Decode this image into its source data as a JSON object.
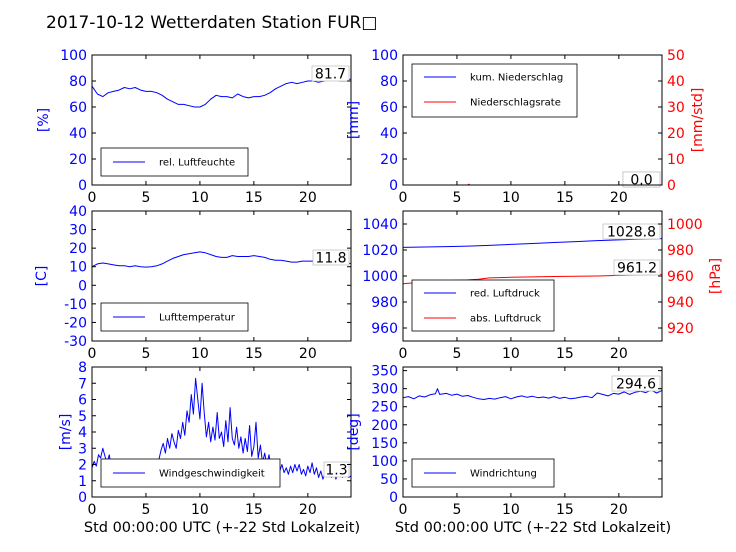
{
  "title": "2017-10-12 Wetterdaten Station FUR□",
  "xlabel": "Std 00:00:00 UTC (+-22 Std Lokalzeit)",
  "colors": {
    "blue": "#0000ff",
    "red": "#ff0000",
    "text": "#000000"
  },
  "chart_data": [
    {
      "type": "line",
      "id": "humidity",
      "ylabel": "[%]",
      "ylim": [
        0,
        100
      ],
      "yticks": [
        0,
        20,
        40,
        60,
        80,
        100
      ],
      "xlim": [
        0,
        24
      ],
      "xticks": [
        0,
        5,
        10,
        15,
        20
      ],
      "series": [
        {
          "name": "rel. Luftfeuchte",
          "color": "blue",
          "x": [
            0,
            0.5,
            1,
            1.5,
            2,
            2.5,
            3,
            3.5,
            4,
            4.5,
            5,
            5.5,
            6,
            6.5,
            7,
            7.5,
            8,
            8.5,
            9,
            9.5,
            10,
            10.5,
            11,
            11.5,
            12,
            12.5,
            13,
            13.5,
            14,
            14.5,
            15,
            15.5,
            16,
            16.5,
            17,
            17.5,
            18,
            18.5,
            19,
            19.5,
            20,
            20.5,
            21,
            21.5,
            22,
            22.5,
            23,
            23.5,
            24
          ],
          "y": [
            76,
            70,
            68,
            71,
            72,
            73,
            75,
            74,
            75,
            73,
            72,
            72,
            71,
            69,
            66,
            64,
            62,
            62,
            61,
            60,
            60,
            62,
            66,
            69,
            68,
            68,
            67,
            70,
            68,
            67,
            68,
            68,
            69,
            71,
            74,
            76,
            78,
            79,
            78,
            79,
            80,
            80,
            79,
            80,
            81,
            81,
            80,
            80,
            81.7
          ]
        }
      ],
      "annotations": [
        {
          "text": "81.7",
          "axis": "left"
        }
      ]
    },
    {
      "type": "line",
      "id": "precipitation",
      "ylabel": "[mm]",
      "ylim": [
        0,
        100
      ],
      "yticks": [
        0,
        20,
        40,
        60,
        80,
        100
      ],
      "ylabel_right": "[mm/std]",
      "ylim_right": [
        0,
        50
      ],
      "yticks_right": [
        0,
        10,
        20,
        30,
        40,
        50
      ],
      "xlim": [
        0,
        24
      ],
      "xticks": [
        0,
        5,
        10,
        15,
        20
      ],
      "series": [
        {
          "name": "kum. Niederschlag",
          "color": "blue",
          "axis": "left",
          "x": [
            0,
            24
          ],
          "y": [
            0,
            0
          ]
        },
        {
          "name": "Niederschlagsrate",
          "color": "red",
          "axis": "right",
          "x": [
            0,
            6,
            6.1,
            6.2,
            24
          ],
          "y": [
            0,
            0,
            0.3,
            0,
            0
          ]
        }
      ],
      "annotations": [
        {
          "text": "0.0",
          "axis": "left"
        },
        {
          "text": "0.0",
          "axis": "right"
        }
      ]
    },
    {
      "type": "line",
      "id": "temperature",
      "ylabel": "[C]",
      "ylim": [
        -30,
        40
      ],
      "yticks": [
        -30,
        -20,
        -10,
        0,
        10,
        20,
        30,
        40
      ],
      "xlim": [
        0,
        24
      ],
      "xticks": [
        0,
        5,
        10,
        15,
        20
      ],
      "series": [
        {
          "name": "Lufttemperatur",
          "color": "blue",
          "x": [
            0,
            0.5,
            1,
            1.5,
            2,
            2.5,
            3,
            3.5,
            4,
            4.5,
            5,
            5.5,
            6,
            6.5,
            7,
            7.5,
            8,
            8.5,
            9,
            9.5,
            10,
            10.5,
            11,
            11.5,
            12,
            12.5,
            13,
            13.5,
            14,
            14.5,
            15,
            15.5,
            16,
            16.5,
            17,
            17.5,
            18,
            18.5,
            19,
            19.5,
            20,
            20.5,
            21,
            21.5,
            22,
            22.5,
            23,
            23.5,
            24
          ],
          "y": [
            10,
            11.5,
            12,
            11.5,
            11,
            10.5,
            10.5,
            10,
            10.5,
            10,
            9.8,
            10,
            10.5,
            11.5,
            13,
            14.5,
            15.5,
            16.5,
            17,
            17.5,
            18,
            17.5,
            16.5,
            15.5,
            15,
            15,
            16,
            15.5,
            15.5,
            15.5,
            16,
            15.5,
            15,
            14,
            13.5,
            13.5,
            13,
            12.5,
            12.5,
            13,
            13,
            13,
            12.5,
            12.5,
            12,
            12,
            11.8,
            11.8,
            11.8
          ]
        }
      ],
      "annotations": [
        {
          "text": "11.8",
          "axis": "left"
        }
      ]
    },
    {
      "type": "line",
      "id": "pressure",
      "ylabel_right": "[hPa]",
      "ylim": [
        950,
        1050
      ],
      "yticks": [
        960,
        980,
        1000,
        1020,
        1040
      ],
      "ylim_right": [
        910,
        1010
      ],
      "yticks_right": [
        920,
        940,
        960,
        980,
        1000
      ],
      "xlim": [
        0,
        24
      ],
      "xticks": [
        0,
        5,
        10,
        15,
        20
      ],
      "series": [
        {
          "name": "red. Luftdruck",
          "color": "blue",
          "axis": "left",
          "x": [
            0,
            2,
            4,
            6,
            8,
            10,
            12,
            14,
            16,
            18,
            20,
            22,
            24
          ],
          "y": [
            1022,
            1022.3,
            1022.6,
            1023,
            1023.5,
            1024.3,
            1025,
            1025.8,
            1026.5,
            1027.2,
            1027.8,
            1028.4,
            1028.8
          ]
        },
        {
          "name": "abs. Luftdruck",
          "color": "red",
          "axis": "right",
          "x": [
            0,
            2,
            4,
            6,
            7,
            8,
            10,
            12,
            14,
            16,
            18,
            20,
            22,
            24
          ],
          "y": [
            954,
            955.5,
            956.5,
            957,
            957.5,
            958.5,
            959,
            959.3,
            959.6,
            959.8,
            960,
            960.5,
            961,
            961.2
          ]
        }
      ],
      "annotations": [
        {
          "text": "1028.8",
          "axis": "left"
        },
        {
          "text": "961.2",
          "axis": "right"
        }
      ]
    },
    {
      "type": "line",
      "id": "windspeed",
      "ylabel": "[m/s]",
      "ylim": [
        0,
        8
      ],
      "yticks": [
        0,
        1,
        2,
        3,
        4,
        5,
        6,
        7,
        8
      ],
      "xlim": [
        0,
        24
      ],
      "xticks": [
        0,
        5,
        10,
        15,
        20
      ],
      "series": [
        {
          "name": "Windgeschwindigkeit",
          "color": "blue",
          "x": [
            0,
            0.2,
            0.4,
            0.6,
            0.8,
            1.0,
            1.2,
            1.4,
            1.6,
            1.8,
            2.0,
            2.2,
            2.4,
            2.6,
            2.8,
            3.0,
            3.2,
            3.4,
            3.6,
            3.8,
            4.0,
            4.2,
            4.4,
            4.6,
            4.8,
            5.0,
            5.2,
            5.4,
            5.6,
            5.8,
            6.0,
            6.2,
            6.4,
            6.6,
            6.8,
            7.0,
            7.2,
            7.4,
            7.6,
            7.8,
            8.0,
            8.2,
            8.4,
            8.6,
            8.8,
            9.0,
            9.2,
            9.4,
            9.6,
            9.8,
            10.0,
            10.2,
            10.4,
            10.6,
            10.8,
            11.0,
            11.2,
            11.4,
            11.6,
            11.8,
            12.0,
            12.2,
            12.4,
            12.6,
            12.8,
            13.0,
            13.2,
            13.4,
            13.6,
            13.8,
            14.0,
            14.2,
            14.4,
            14.6,
            14.8,
            15.0,
            15.2,
            15.4,
            15.6,
            15.8,
            16.0,
            16.2,
            16.4,
            16.6,
            16.8,
            17.0,
            17.2,
            17.4,
            17.6,
            17.8,
            18.0,
            18.2,
            18.4,
            18.6,
            18.8,
            19.0,
            19.2,
            19.4,
            19.6,
            19.8,
            20.0,
            20.2,
            20.4,
            20.6,
            20.8,
            21.0,
            21.2,
            21.4,
            21.6,
            21.8,
            22.0,
            22.2,
            22.4,
            22.6,
            22.8,
            23.0,
            23.2,
            23.4,
            23.6,
            23.8,
            24.0
          ],
          "y": [
            1.8,
            2.2,
            1.9,
            2.6,
            2.4,
            3.0,
            2.5,
            2.1,
            2.6,
            1.8,
            2.0,
            1.6,
            1.8,
            1.5,
            2.0,
            1.3,
            1.7,
            1.2,
            1.6,
            1.4,
            1.2,
            1.7,
            1.4,
            1.3,
            1.6,
            1.2,
            1.5,
            1.3,
            1.9,
            1.6,
            1.8,
            2.3,
            2.9,
            3.3,
            2.7,
            3.6,
            3.0,
            3.9,
            3.4,
            3.0,
            4.1,
            3.6,
            4.6,
            3.8,
            5.3,
            4.6,
            6.3,
            5.1,
            7.3,
            6.0,
            4.8,
            7.0,
            5.2,
            3.7,
            4.6,
            3.4,
            4.3,
            3.5,
            5.2,
            3.6,
            4.0,
            3.1,
            4.7,
            3.4,
            5.5,
            3.6,
            3.2,
            4.3,
            3.0,
            3.7,
            2.7,
            3.6,
            2.8,
            4.4,
            2.5,
            3.1,
            4.6,
            2.4,
            3.2,
            2.1,
            2.7,
            2.0,
            2.6,
            1.8,
            2.3,
            1.7,
            2.1,
            1.6,
            2.0,
            1.5,
            1.8,
            1.4,
            1.9,
            1.5,
            2.0,
            1.6,
            2.0,
            1.4,
            1.7,
            1.3,
            1.9,
            1.5,
            2.1,
            1.4,
            1.8,
            1.2,
            1.6,
            1.1,
            1.5,
            1.3,
            1.7,
            1.2,
            1.6,
            1.1,
            1.5,
            1.4,
            1.2,
            1.6,
            1.3,
            1.2,
            1.3
          ]
        }
      ],
      "annotations": [
        {
          "text": "1.3",
          "axis": "left"
        }
      ]
    },
    {
      "type": "line",
      "id": "winddirection",
      "ylabel": "[deg]",
      "ylim": [
        0,
        360
      ],
      "yticks": [
        0,
        50,
        100,
        150,
        200,
        250,
        300,
        350
      ],
      "xlim": [
        0,
        24
      ],
      "xticks": [
        0,
        5,
        10,
        15,
        20
      ],
      "series": [
        {
          "name": "Windrichtung",
          "color": "blue",
          "x": [
            0,
            0.5,
            1,
            1.5,
            2,
            2.5,
            3,
            3.2,
            3.4,
            4,
            4.5,
            5,
            5.5,
            6,
            6.5,
            7,
            7.5,
            8,
            8.5,
            9,
            9.5,
            10,
            10.5,
            11,
            11.5,
            12,
            12.5,
            13,
            13.5,
            14,
            14.5,
            15,
            15.5,
            16,
            16.5,
            17,
            17.5,
            18,
            18.5,
            19,
            19.5,
            20,
            20.5,
            21,
            21.5,
            22,
            22.5,
            23,
            23.5,
            24
          ],
          "y": [
            275,
            278,
            272,
            280,
            277,
            283,
            286,
            300,
            284,
            287,
            282,
            285,
            279,
            281,
            276,
            272,
            270,
            273,
            271,
            275,
            278,
            272,
            277,
            280,
            276,
            279,
            275,
            277,
            274,
            278,
            273,
            276,
            272,
            274,
            277,
            279,
            275,
            288,
            284,
            280,
            287,
            285,
            291,
            284,
            290,
            293,
            289,
            296,
            288,
            294.6
          ]
        }
      ],
      "annotations": [
        {
          "text": "294.6",
          "axis": "left"
        }
      ]
    }
  ]
}
